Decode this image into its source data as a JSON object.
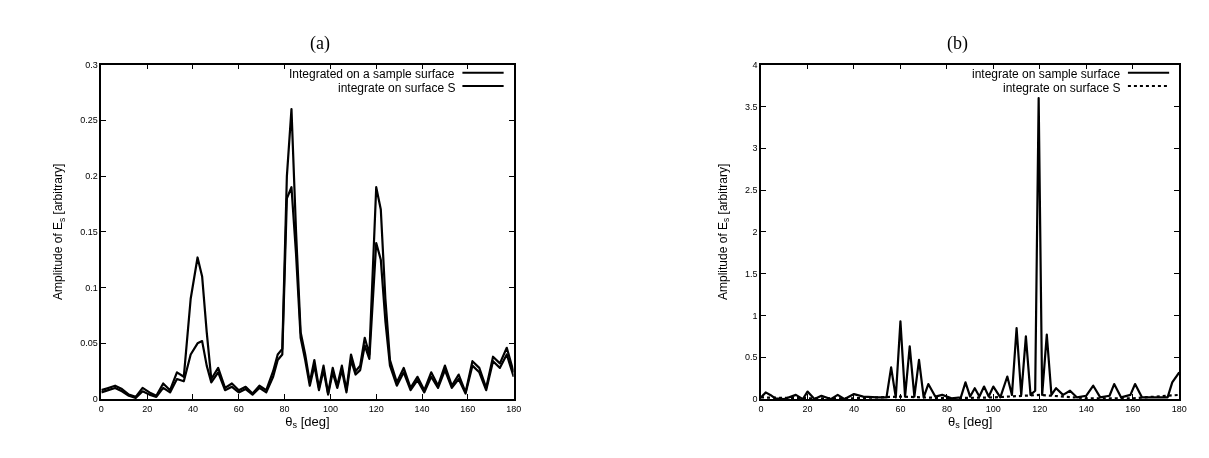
{
  "chart_data": [
    {
      "type": "line",
      "title": "(a)",
      "xlabel": "θ$_{s}$ [deg]",
      "ylabel": "Amplitude of E$_{s}$ [arbitrary]",
      "xlim": [
        0,
        180
      ],
      "xticks": [
        0,
        20,
        40,
        60,
        80,
        100,
        120,
        140,
        160,
        180
      ],
      "ylim": [
        0,
        0.3
      ],
      "yticks": [
        0,
        0.05,
        0.1,
        0.15,
        0.2,
        0.25,
        0.3
      ],
      "legend": "top right",
      "marker": "none",
      "series": [
        {
          "name": "Integrated on a sample surface",
          "color": "#000000",
          "line_style": "solid",
          "x": [
            0,
            3,
            6,
            9,
            12,
            15,
            18,
            21,
            24,
            27,
            30,
            33,
            36,
            39,
            42,
            44,
            46,
            48,
            51,
            54,
            57,
            60,
            63,
            66,
            69,
            72,
            75,
            77,
            79,
            81,
            83,
            85,
            87,
            89,
            91,
            93,
            95,
            97,
            99,
            101,
            103,
            105,
            107,
            109,
            111,
            113,
            115,
            117,
            120,
            122,
            124,
            126,
            129,
            132,
            135,
            138,
            141,
            144,
            147,
            150,
            153,
            156,
            159,
            162,
            165,
            168,
            171,
            174,
            177,
            180
          ],
          "values": [
            0.008,
            0.01,
            0.012,
            0.009,
            0.004,
            0.002,
            0.01,
            0.006,
            0.003,
            0.014,
            0.008,
            0.024,
            0.02,
            0.09,
            0.127,
            0.11,
            0.06,
            0.018,
            0.028,
            0.01,
            0.014,
            0.008,
            0.011,
            0.005,
            0.012,
            0.008,
            0.025,
            0.04,
            0.045,
            0.2,
            0.26,
            0.15,
            0.06,
            0.04,
            0.015,
            0.035,
            0.01,
            0.03,
            0.005,
            0.028,
            0.012,
            0.03,
            0.008,
            0.04,
            0.025,
            0.03,
            0.055,
            0.04,
            0.19,
            0.17,
            0.09,
            0.035,
            0.015,
            0.028,
            0.01,
            0.02,
            0.008,
            0.024,
            0.012,
            0.03,
            0.012,
            0.022,
            0.006,
            0.034,
            0.028,
            0.01,
            0.038,
            0.032,
            0.046,
            0.024
          ]
        },
        {
          "name": "integrate on surface S",
          "color": "#000000",
          "line_style": "solid",
          "x": [
            0,
            3,
            6,
            9,
            12,
            15,
            18,
            21,
            24,
            27,
            30,
            33,
            36,
            39,
            42,
            44,
            46,
            48,
            51,
            54,
            57,
            60,
            63,
            66,
            69,
            72,
            75,
            77,
            79,
            81,
            83,
            85,
            87,
            89,
            91,
            93,
            95,
            97,
            99,
            101,
            103,
            105,
            107,
            109,
            111,
            113,
            115,
            117,
            120,
            122,
            124,
            126,
            129,
            132,
            135,
            138,
            141,
            144,
            147,
            150,
            153,
            156,
            159,
            162,
            165,
            168,
            171,
            174,
            177,
            180
          ],
          "values": [
            0.006,
            0.008,
            0.01,
            0.007,
            0.003,
            0.001,
            0.007,
            0.004,
            0.002,
            0.01,
            0.006,
            0.018,
            0.016,
            0.04,
            0.05,
            0.052,
            0.03,
            0.015,
            0.024,
            0.008,
            0.011,
            0.006,
            0.009,
            0.004,
            0.01,
            0.006,
            0.02,
            0.035,
            0.04,
            0.18,
            0.19,
            0.13,
            0.055,
            0.035,
            0.012,
            0.03,
            0.008,
            0.026,
            0.004,
            0.024,
            0.01,
            0.026,
            0.006,
            0.035,
            0.022,
            0.026,
            0.048,
            0.036,
            0.14,
            0.125,
            0.07,
            0.03,
            0.012,
            0.024,
            0.008,
            0.017,
            0.006,
            0.02,
            0.01,
            0.026,
            0.01,
            0.018,
            0.005,
            0.03,
            0.024,
            0.008,
            0.034,
            0.028,
            0.04,
            0.02
          ]
        }
      ]
    },
    {
      "type": "line",
      "title": "(b)",
      "xlabel": "θ$_{s}$ [deg]",
      "ylabel": "Amplitude of E$_{s}$ [arbitrary]",
      "xlim": [
        0,
        180
      ],
      "xticks": [
        0,
        20,
        40,
        60,
        80,
        100,
        120,
        140,
        160,
        180
      ],
      "ylim": [
        0,
        4
      ],
      "yticks": [
        0,
        0.5,
        1,
        1.5,
        2,
        2.5,
        3,
        3.5,
        4
      ],
      "legend": "top right",
      "marker": "none",
      "series": [
        {
          "name": "integrate on sample surface",
          "color": "#000000",
          "line_style": "solid",
          "x": [
            0,
            2,
            4,
            6,
            10,
            15,
            18,
            20,
            23,
            26,
            30,
            33,
            36,
            40,
            44,
            50,
            54,
            56,
            58,
            60,
            62,
            64,
            66,
            68,
            70,
            72,
            75,
            78,
            82,
            86,
            88,
            90,
            92,
            94,
            96,
            98,
            100,
            103,
            106,
            108,
            110,
            112,
            114,
            116,
            118,
            119.5,
            121,
            123,
            125,
            127,
            130,
            133,
            136,
            140,
            143,
            146,
            150,
            152,
            155,
            159,
            161,
            164,
            170,
            175,
            177,
            180
          ],
          "values": [
            0.02,
            0.08,
            0.05,
            0.01,
            0.0,
            0.05,
            0.0,
            0.09,
            0.0,
            0.04,
            0.0,
            0.05,
            0.0,
            0.06,
            0.03,
            0.02,
            0.02,
            0.38,
            0.02,
            0.93,
            0.03,
            0.63,
            0.03,
            0.47,
            0.02,
            0.18,
            0.03,
            0.05,
            0.01,
            0.02,
            0.2,
            0.03,
            0.13,
            0.03,
            0.15,
            0.03,
            0.15,
            0.02,
            0.27,
            0.05,
            0.85,
            0.05,
            0.75,
            0.05,
            0.1,
            3.6,
            0.05,
            0.77,
            0.05,
            0.13,
            0.05,
            0.1,
            0.02,
            0.04,
            0.16,
            0.02,
            0.04,
            0.18,
            0.02,
            0.05,
            0.18,
            0.02,
            0.02,
            0.02,
            0.2,
            0.32
          ]
        },
        {
          "name": "integrate on surface S",
          "color": "#000000",
          "line_style": "dotted",
          "x": [
            0,
            20,
            40,
            60,
            80,
            100,
            120,
            140,
            160,
            180
          ],
          "values": [
            0.02,
            0.01,
            0.01,
            0.03,
            0.01,
            0.02,
            0.05,
            0.01,
            0.01,
            0.05
          ]
        }
      ]
    }
  ]
}
